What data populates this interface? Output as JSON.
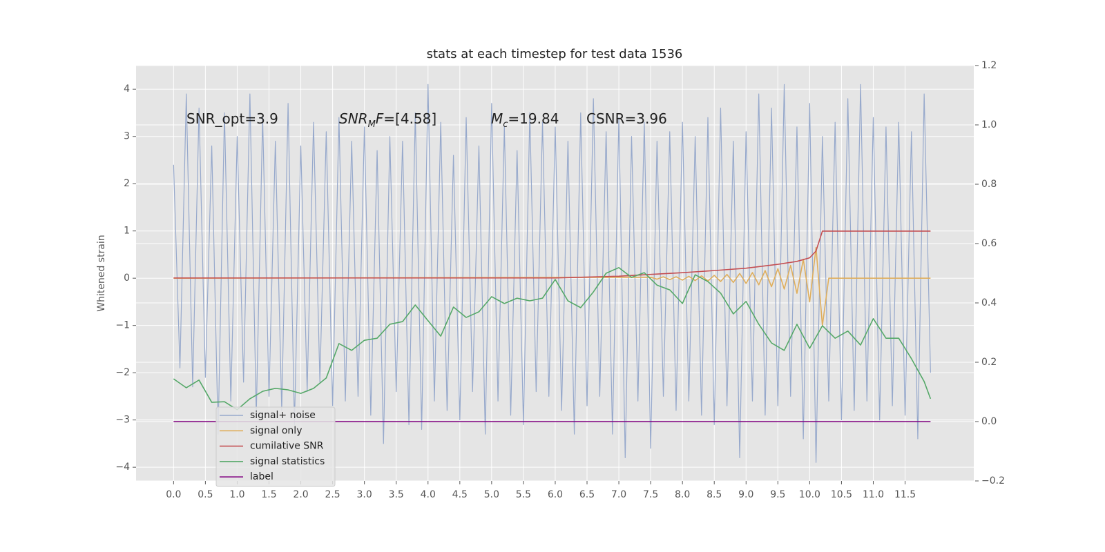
{
  "chart_data": {
    "type": "line",
    "title": "stats at each timestep for test data 1536",
    "y_label": "Whitened strain",
    "grid": true,
    "legend": "lower left",
    "xlim": [
      -0.59,
      12.58
    ],
    "ylim": [
      -4.29,
      4.5
    ],
    "y2lim": [
      -0.2,
      1.2
    ],
    "xticks": [
      {
        "value": 0,
        "label": "0.0"
      },
      0.5,
      {
        "value": 1,
        "label": "1.0"
      },
      1.5,
      {
        "value": 2,
        "label": "2.0"
      },
      2.5,
      {
        "value": 3,
        "label": "3.0"
      },
      3.5,
      {
        "value": 4,
        "label": "4.0"
      },
      4.5,
      {
        "value": 5,
        "label": "5.0"
      },
      5.5,
      {
        "value": 6,
        "label": "6.0"
      },
      6.5,
      {
        "value": 7,
        "label": "7.0"
      },
      7.5,
      {
        "value": 8,
        "label": "8.0"
      },
      8.5,
      {
        "value": 9,
        "label": "9.0"
      },
      9.5,
      {
        "value": 10,
        "label": "10.0"
      },
      10.5,
      {
        "value": 11,
        "label": "11.0"
      },
      11.5
    ],
    "yticks": [
      {
        "value": -4,
        "label": "−4"
      },
      {
        "value": -3,
        "label": "−3"
      },
      {
        "value": -2,
        "label": "−2"
      },
      {
        "value": -1,
        "label": "−1"
      },
      0,
      1,
      2,
      3,
      4
    ],
    "y2ticks": [
      {
        "value": -0.2,
        "label": "−0.2"
      },
      {
        "value": 0,
        "label": "0.0"
      },
      0.2,
      0.4,
      0.6,
      0.8,
      {
        "value": 1,
        "label": "1.0"
      },
      1.2
    ],
    "annotations": [
      {
        "parts": [
          {
            "text": "SNR_opt=3.9"
          }
        ]
      },
      {
        "parts": [
          {
            "text": "SNR",
            "style": "italic"
          },
          {
            "text": "M",
            "style": "sub"
          },
          {
            "text": "F",
            "style": "italic"
          },
          {
            "text": "=[4.58]"
          }
        ]
      },
      {
        "parts": [
          {
            "text": "M",
            "style": "italic"
          },
          {
            "text": "c",
            "style": "sub"
          },
          {
            "text": "=19.84"
          }
        ]
      },
      {
        "parts": [
          {
            "text": "CSNR=3.96"
          }
        ]
      }
    ],
    "series": [
      {
        "name": "signal+ noise",
        "color": "#97a9cc",
        "x": [
          0,
          0.1,
          0.2,
          0.3,
          0.4,
          0.5,
          0.6,
          0.7,
          0.8,
          0.9,
          1,
          1.1,
          1.2,
          1.3,
          1.4,
          1.5,
          1.6,
          1.7,
          1.8,
          1.9,
          2,
          2.1,
          2.2,
          2.3,
          2.4,
          2.5,
          2.6,
          2.7,
          2.8,
          2.9,
          3,
          3.1,
          3.2,
          3.3,
          3.4,
          3.5,
          3.6,
          3.7,
          3.8,
          3.9,
          4,
          4.1,
          4.2,
          4.3,
          4.4,
          4.5,
          4.6,
          4.7,
          4.8,
          4.9,
          5,
          5.1,
          5.2,
          5.3,
          5.4,
          5.5,
          5.6,
          5.7,
          5.8,
          5.9,
          6,
          6.1,
          6.2,
          6.3,
          6.4,
          6.5,
          6.6,
          6.7,
          6.8,
          6.9,
          7,
          7.1,
          7.2,
          7.3,
          7.4,
          7.5,
          7.6,
          7.7,
          7.8,
          7.9,
          8,
          8.1,
          8.2,
          8.3,
          8.4,
          8.5,
          8.6,
          8.7,
          8.8,
          8.9,
          9,
          9.1,
          9.2,
          9.3,
          9.4,
          9.5,
          9.6,
          9.7,
          9.8,
          9.9,
          10,
          10.1,
          10.2,
          10.3,
          10.4,
          10.5,
          10.6,
          10.7,
          10.8,
          10.9,
          11,
          11.1,
          11.2,
          11.3,
          11.4,
          11.5,
          11.6,
          11.7,
          11.8,
          11.9
        ],
        "values": [
          2.4,
          -1.9,
          3.9,
          -2.3,
          3.6,
          -2.1,
          2.8,
          -3.3,
          3.5,
          -2.6,
          3.0,
          -2.2,
          3.9,
          -2.9,
          3.4,
          -2.5,
          2.9,
          -2.8,
          3.7,
          -3.1,
          2.8,
          -2.4,
          3.3,
          -2.2,
          3.1,
          -2.7,
          3.4,
          -2.6,
          2.9,
          -2.5,
          3.2,
          -2.9,
          2.7,
          -3.5,
          3.0,
          -2.4,
          2.9,
          -3.1,
          3.5,
          -3.2,
          4.1,
          -2.6,
          3.3,
          -2.8,
          2.6,
          -3.0,
          3.4,
          -2.4,
          2.8,
          -3.3,
          3.7,
          -2.6,
          3.2,
          -2.9,
          2.7,
          -3.1,
          3.5,
          -2.4,
          3.3,
          -2.5,
          3.2,
          -2.8,
          2.9,
          -3.3,
          3.5,
          -2.7,
          3.8,
          -2.5,
          3.1,
          -3.3,
          3.4,
          -3.8,
          3.0,
          -2.6,
          3.3,
          -3.6,
          2.9,
          -2.5,
          3.1,
          -2.8,
          3.3,
          -2.6,
          3.0,
          -2.9,
          3.4,
          -3.1,
          3.6,
          -2.7,
          2.9,
          -3.8,
          3.1,
          -2.6,
          3.9,
          -2.9,
          3.6,
          -2.7,
          4.1,
          -2.5,
          3.2,
          -3.4,
          3.7,
          -3.9,
          3.0,
          -2.6,
          3.3,
          -3.0,
          3.8,
          -2.8,
          4.1,
          -2.6,
          3.4,
          -3.0,
          3.2,
          -2.7,
          3.3,
          -2.9,
          3.1,
          -3.4,
          3.9,
          -2.0
        ]
      },
      {
        "name": "signal only",
        "color": "#dfae5c",
        "x": [
          0,
          7.5,
          7.6,
          7.7,
          7.8,
          7.9,
          8,
          8.1,
          8.2,
          8.3,
          8.4,
          8.5,
          8.6,
          8.7,
          8.8,
          8.9,
          9,
          9.1,
          9.2,
          9.3,
          9.4,
          9.5,
          9.6,
          9.7,
          9.8,
          9.9,
          10,
          10.1,
          10.2,
          10.3,
          11.9
        ],
        "values": [
          0,
          0.02,
          -0.02,
          0.03,
          -0.03,
          0.03,
          -0.04,
          0.04,
          -0.05,
          0.05,
          -0.06,
          0.06,
          -0.07,
          0.08,
          -0.09,
          0.1,
          -0.11,
          0.12,
          -0.14,
          0.16,
          -0.18,
          0.2,
          -0.23,
          0.27,
          -0.32,
          0.4,
          -0.5,
          0.65,
          -1.0,
          0,
          0
        ]
      },
      {
        "name": "cumilative SNR",
        "color": "#c44e52",
        "axis": "y2",
        "x": [
          0,
          6,
          6.5,
          7,
          7.5,
          8,
          8.5,
          9,
          9.5,
          9.8,
          10,
          10.1,
          10.2,
          11.9
        ],
        "values": [
          0.484,
          0.484,
          0.487,
          0.49,
          0.496,
          0.502,
          0.509,
          0.517,
          0.53,
          0.54,
          0.552,
          0.575,
          0.642,
          0.642
        ]
      },
      {
        "name": "signal statistics",
        "color": "#55a868",
        "axis": "y2",
        "x": [
          0,
          0.2,
          0.4,
          0.6,
          0.8,
          1,
          1.2,
          1.4,
          1.6,
          1.8,
          2,
          2.2,
          2.4,
          2.6,
          2.8,
          3,
          3.2,
          3.4,
          3.6,
          3.8,
          4,
          4.2,
          4.4,
          4.6,
          4.8,
          5,
          5.2,
          5.4,
          5.6,
          5.8,
          6,
          6.2,
          6.4,
          6.6,
          6.8,
          7,
          7.2,
          7.4,
          7.6,
          7.8,
          8,
          8.2,
          8.4,
          8.6,
          8.8,
          9,
          9.2,
          9.4,
          9.6,
          9.8,
          10,
          10.2,
          10.4,
          10.6,
          10.8,
          11,
          11.2,
          11.4,
          11.6,
          11.8,
          11.9
        ],
        "values": [
          0.144,
          0.114,
          0.14,
          0.065,
          0.067,
          0.04,
          0.077,
          0.102,
          0.112,
          0.107,
          0.095,
          0.112,
          0.147,
          0.263,
          0.24,
          0.274,
          0.281,
          0.328,
          0.337,
          0.393,
          0.34,
          0.288,
          0.386,
          0.351,
          0.37,
          0.421,
          0.398,
          0.416,
          0.407,
          0.416,
          0.479,
          0.407,
          0.384,
          0.437,
          0.5,
          0.519,
          0.486,
          0.502,
          0.46,
          0.444,
          0.398,
          0.495,
          0.472,
          0.433,
          0.363,
          0.405,
          0.328,
          0.265,
          0.24,
          0.328,
          0.247,
          0.323,
          0.281,
          0.305,
          0.258,
          0.347,
          0.281,
          0.281,
          0.212,
          0.135,
          0.077
        ]
      },
      {
        "name": "label",
        "color": "#800080",
        "axis": "y2",
        "x": [
          0,
          11.9
        ],
        "values": [
          0,
          0
        ]
      }
    ]
  }
}
